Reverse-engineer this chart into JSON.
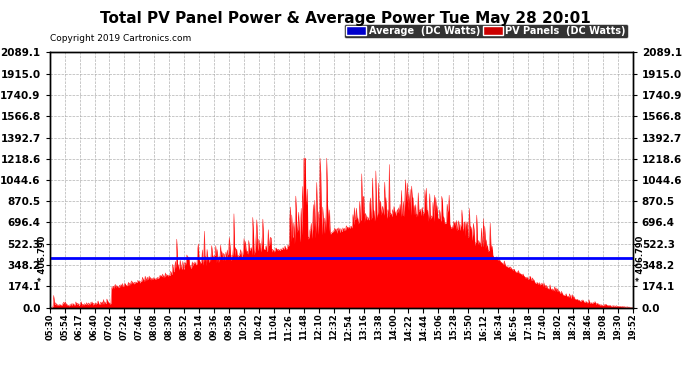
{
  "title": "Total PV Panel Power & Average Power Tue May 28 20:01",
  "copyright": "Copyright 2019 Cartronics.com",
  "average_value": 406.79,
  "average_label": "406.790",
  "ymax": 2089.1,
  "ymin": 0.0,
  "yticks": [
    0.0,
    174.1,
    348.2,
    522.3,
    696.4,
    870.5,
    1044.6,
    1218.6,
    1392.7,
    1566.8,
    1740.9,
    1915.0,
    2089.1
  ],
  "xtick_labels": [
    "05:30",
    "05:54",
    "06:17",
    "06:40",
    "07:02",
    "07:24",
    "07:46",
    "08:08",
    "08:30",
    "08:52",
    "09:14",
    "09:36",
    "09:58",
    "10:20",
    "10:42",
    "11:04",
    "11:26",
    "11:48",
    "12:10",
    "12:32",
    "12:54",
    "13:16",
    "13:38",
    "14:00",
    "14:22",
    "14:44",
    "15:06",
    "15:28",
    "15:50",
    "16:12",
    "16:34",
    "16:56",
    "17:18",
    "17:40",
    "18:02",
    "18:24",
    "18:46",
    "19:08",
    "19:30",
    "19:52"
  ],
  "legend_avg_label": "Average  (DC Watts)",
  "legend_pv_label": "PV Panels  (DC Watts)",
  "legend_avg_bg": "#0000cc",
  "legend_pv_bg": "#cc0000",
  "plot_bg_color": "#ffffff",
  "line_color": "#0000ff",
  "fill_color": "#ff0000",
  "grid_color": "#aaaaaa",
  "title_color": "#000000",
  "fig_bg_color": "#ffffff"
}
